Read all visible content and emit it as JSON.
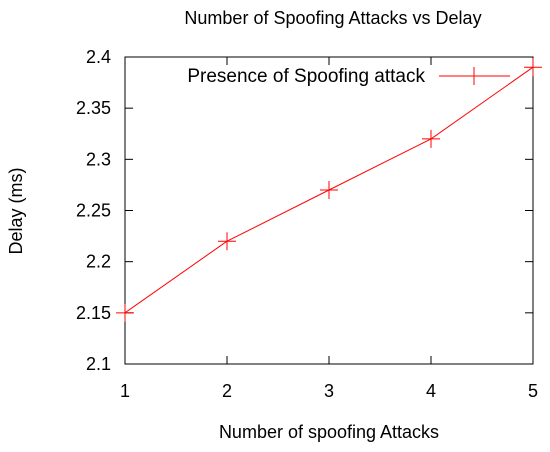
{
  "chart_data": {
    "type": "line",
    "title": "Number of Spoofing Attacks vs Delay",
    "xlabel": "Number of spoofing Attacks",
    "ylabel": "Delay (ms)",
    "xlim": [
      1,
      5
    ],
    "ylim": [
      2.1,
      2.4
    ],
    "xticks": [
      "1",
      "2",
      "3",
      "4",
      "5"
    ],
    "yticks": [
      "2.1",
      "2.15",
      "2.2",
      "2.25",
      "2.3",
      "2.35",
      "2.4"
    ],
    "grid": false,
    "legend_position": "top-right",
    "series": [
      {
        "name": "Presence of Spoofing attack",
        "color": "#ff0000",
        "marker": "plus",
        "x": [
          1,
          2,
          3,
          4,
          5
        ],
        "y": [
          2.15,
          2.22,
          2.27,
          2.32,
          2.39
        ]
      }
    ]
  }
}
